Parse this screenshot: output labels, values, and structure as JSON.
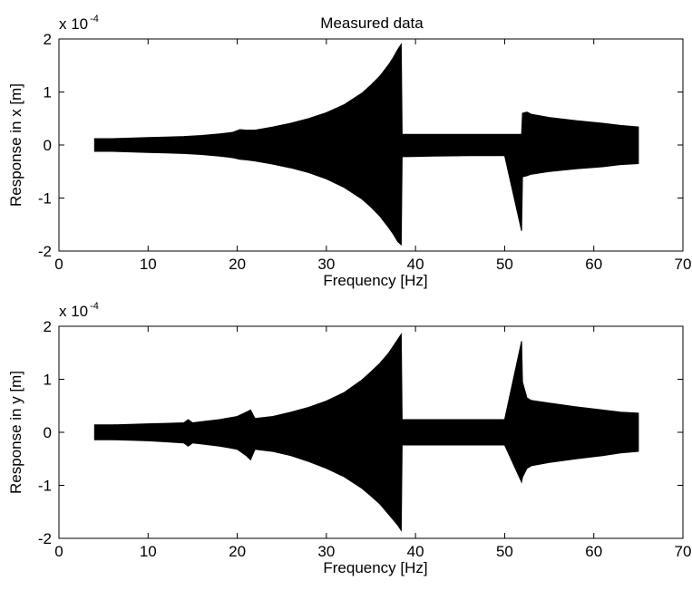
{
  "figure": {
    "title": "Measured data"
  },
  "chart_data": [
    {
      "type": "area",
      "title": "Measured data",
      "xlabel": "Frequency [Hz]",
      "ylabel": "Response in x [m]",
      "y_multiplier_base": "x 10",
      "y_multiplier_exponent": "-4",
      "xlim": [
        0,
        70
      ],
      "ylim": [
        -2,
        2
      ],
      "x_ticks": [
        "0",
        "10",
        "20",
        "30",
        "40",
        "50",
        "60",
        "70"
      ],
      "y_ticks": [
        "-2",
        "-1",
        "0",
        "1",
        "2"
      ],
      "grid": false,
      "color": "#000000",
      "series": [
        {
          "x": [
            4,
            6,
            8,
            10,
            12,
            14,
            16,
            18,
            19.5,
            20.3,
            21,
            22,
            24,
            26,
            28,
            30,
            32,
            34,
            35,
            36,
            37,
            37.5,
            38,
            38.4,
            38.5,
            39,
            42,
            46,
            50,
            51.9,
            52,
            52.5,
            53,
            55,
            58,
            61,
            63,
            65
          ],
          "upper": [
            0.12,
            0.12,
            0.13,
            0.14,
            0.15,
            0.16,
            0.18,
            0.21,
            0.24,
            0.29,
            0.28,
            0.28,
            0.34,
            0.41,
            0.5,
            0.61,
            0.76,
            0.98,
            1.13,
            1.3,
            1.52,
            1.65,
            1.8,
            1.9,
            0.2,
            0.2,
            0.2,
            0.2,
            0.2,
            0.2,
            0.6,
            0.62,
            0.58,
            0.52,
            0.46,
            0.41,
            0.37,
            0.34
          ],
          "lower": [
            -0.12,
            -0.12,
            -0.13,
            -0.14,
            -0.15,
            -0.16,
            -0.18,
            -0.21,
            -0.24,
            -0.27,
            -0.28,
            -0.3,
            -0.36,
            -0.43,
            -0.52,
            -0.64,
            -0.8,
            -1.02,
            -1.17,
            -1.34,
            -1.56,
            -1.68,
            -1.82,
            -1.88,
            -0.22,
            -0.22,
            -0.21,
            -0.2,
            -0.2,
            -1.62,
            -0.6,
            -0.58,
            -0.55,
            -0.5,
            -0.45,
            -0.41,
            -0.37,
            -0.35
          ]
        }
      ]
    },
    {
      "type": "area",
      "title": "",
      "xlabel": "Frequency [Hz]",
      "ylabel": "Response in y [m]",
      "y_multiplier_base": "x 10",
      "y_multiplier_exponent": "-4",
      "xlim": [
        0,
        70
      ],
      "ylim": [
        -2,
        2
      ],
      "x_ticks": [
        "0",
        "10",
        "20",
        "30",
        "40",
        "50",
        "60",
        "70"
      ],
      "y_ticks": [
        "-2",
        "-1",
        "0",
        "1",
        "2"
      ],
      "grid": false,
      "color": "#000000",
      "series": [
        {
          "x": [
            4,
            6,
            8,
            10,
            12,
            14,
            14.5,
            15,
            16,
            18,
            20,
            21,
            21.5,
            22,
            24,
            26,
            28,
            30,
            32,
            34,
            35,
            36,
            37,
            38,
            38.4,
            38.5,
            40,
            45,
            50,
            51.9,
            52,
            52.5,
            53,
            55,
            58,
            61,
            63,
            65
          ],
          "upper": [
            0.14,
            0.14,
            0.15,
            0.16,
            0.17,
            0.18,
            0.24,
            0.18,
            0.2,
            0.24,
            0.3,
            0.38,
            0.42,
            0.26,
            0.3,
            0.38,
            0.47,
            0.59,
            0.75,
            0.99,
            1.14,
            1.3,
            1.5,
            1.75,
            1.85,
            0.24,
            0.24,
            0.24,
            0.24,
            1.72,
            0.95,
            0.65,
            0.6,
            0.55,
            0.48,
            0.42,
            0.38,
            0.36
          ],
          "lower": [
            -0.14,
            -0.14,
            -0.15,
            -0.16,
            -0.18,
            -0.2,
            -0.26,
            -0.2,
            -0.22,
            -0.26,
            -0.32,
            -0.44,
            -0.52,
            -0.32,
            -0.36,
            -0.44,
            -0.55,
            -0.68,
            -0.84,
            -1.06,
            -1.2,
            -1.35,
            -1.55,
            -1.75,
            -1.85,
            -0.24,
            -0.24,
            -0.24,
            -0.24,
            -0.94,
            -0.85,
            -0.68,
            -0.63,
            -0.57,
            -0.5,
            -0.44,
            -0.39,
            -0.36
          ]
        }
      ]
    }
  ]
}
